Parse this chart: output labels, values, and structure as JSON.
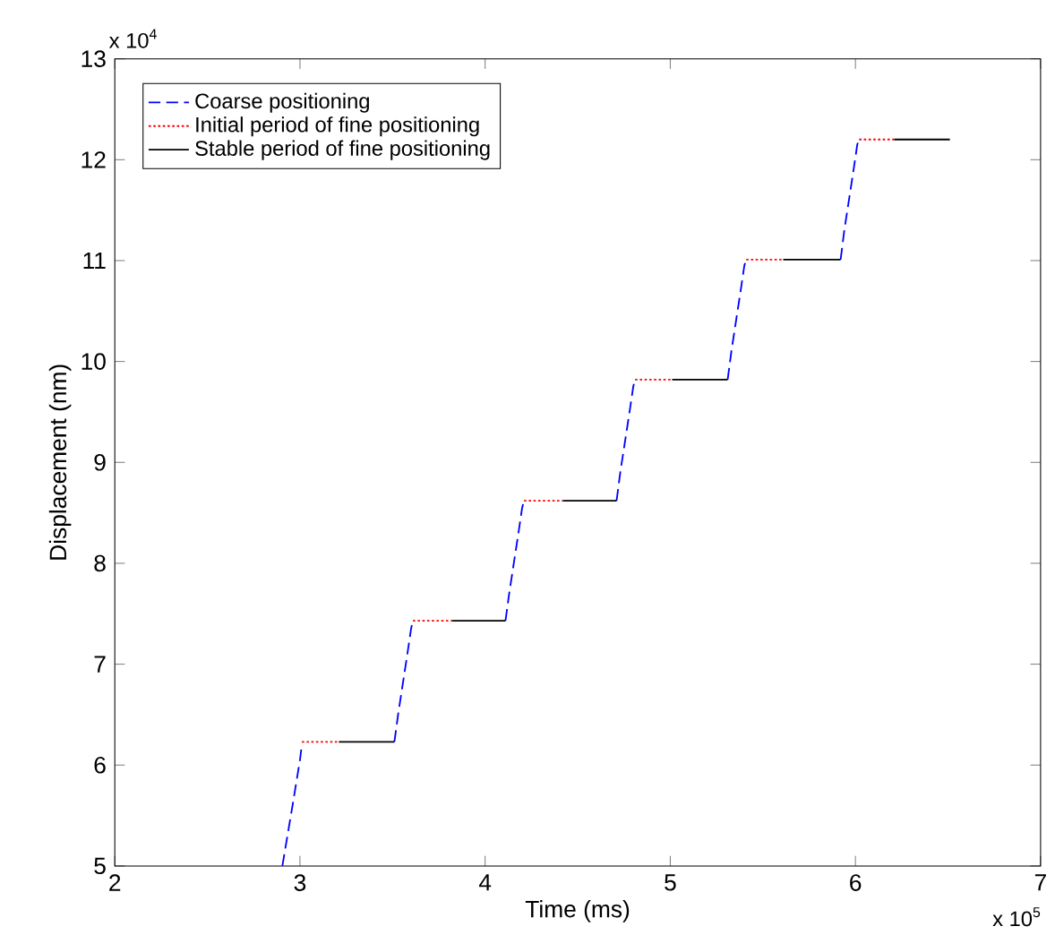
{
  "chart_data": {
    "type": "line",
    "xlabel": "Time (ms)",
    "ylabel": "Displacement (nm)",
    "xlim": [
      2,
      7
    ],
    "ylim": [
      5,
      13
    ],
    "xticks": [
      2,
      3,
      4,
      5,
      6,
      7
    ],
    "yticks": [
      5,
      6,
      7,
      8,
      9,
      10,
      11,
      12,
      13
    ],
    "annotations": [
      "x 10$^{4}$",
      "x 10$^{5}$"
    ],
    "legend": "top left",
    "grid": false,
    "series": [
      {
        "name": "Coarse positioning",
        "color": "#0000ff",
        "line_style": "dashed",
        "x": [
          2.905,
          2.96,
          3.0,
          3.01,
          null,
          3.51,
          3.53,
          3.58,
          3.6,
          3.61,
          null,
          4.11,
          4.13,
          4.18,
          4.2,
          4.21,
          null,
          4.71,
          4.73,
          4.78,
          4.8,
          4.81,
          null,
          5.31,
          5.33,
          5.38,
          5.4,
          5.41,
          null,
          5.92,
          5.94,
          5.99,
          6.01,
          6.02
        ],
        "values": [
          5.0,
          5.6,
          6.05,
          6.2,
          null,
          6.23,
          6.5,
          7.1,
          7.35,
          7.43,
          null,
          7.43,
          7.7,
          8.3,
          8.55,
          8.62,
          null,
          8.62,
          8.9,
          9.5,
          9.75,
          9.82,
          null,
          9.82,
          10.1,
          10.7,
          10.95,
          11.01,
          null,
          11.01,
          11.3,
          11.9,
          12.15,
          12.2
        ]
      },
      {
        "name": "Initial period of fine positioning",
        "color": "#ff0000",
        "line_style": "dotted",
        "x": [
          3.01,
          3.21,
          null,
          3.61,
          3.82,
          null,
          4.21,
          4.42,
          null,
          4.81,
          5.01,
          null,
          5.41,
          5.61,
          null,
          6.02,
          6.21
        ],
        "values": [
          6.23,
          6.23,
          null,
          7.43,
          7.43,
          null,
          8.62,
          8.62,
          null,
          9.82,
          9.82,
          null,
          11.01,
          11.01,
          null,
          12.2,
          12.2
        ]
      },
      {
        "name": "Stable period of fine positioning",
        "color": "#000000",
        "line_style": "solid",
        "x": [
          3.21,
          3.51,
          null,
          3.82,
          4.11,
          null,
          4.42,
          4.71,
          null,
          5.01,
          5.31,
          null,
          5.61,
          5.92,
          null,
          6.21,
          6.51
        ],
        "values": [
          6.23,
          6.23,
          null,
          7.43,
          7.43,
          null,
          8.62,
          8.62,
          null,
          9.82,
          9.82,
          null,
          11.01,
          11.01,
          null,
          12.2,
          12.2
        ]
      }
    ]
  }
}
